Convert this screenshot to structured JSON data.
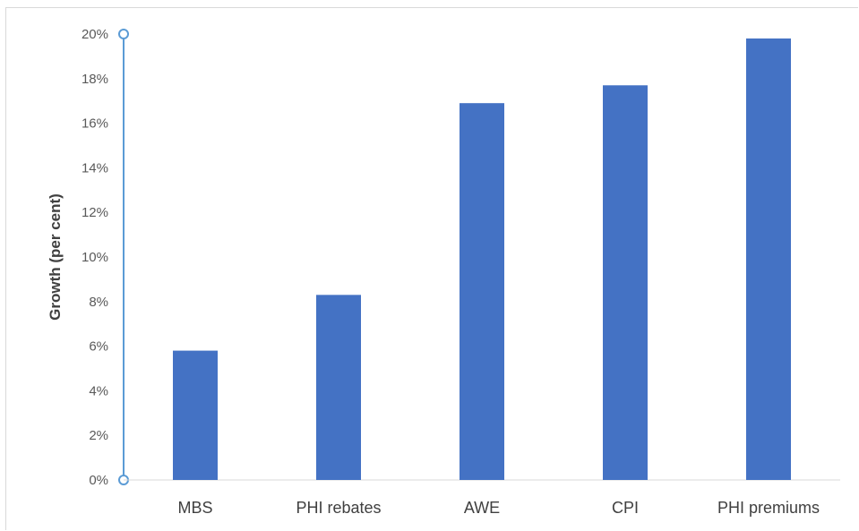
{
  "chart_data": {
    "type": "bar",
    "categories": [
      "MBS",
      "PHI rebates",
      "AWE",
      "CPI",
      "PHI premiums"
    ],
    "values": [
      5.8,
      8.3,
      16.9,
      17.7,
      19.8
    ],
    "title": "",
    "xlabel": "",
    "ylabel": "Growth (per cent)",
    "ylim": [
      0,
      20
    ],
    "ytick_step": 2,
    "ytick_labels": [
      "0%",
      "2%",
      "4%",
      "6%",
      "8%",
      "10%",
      "12%",
      "14%",
      "16%",
      "18%",
      "20%"
    ],
    "grid": false,
    "legend": "none",
    "bar_color": "#4472c4",
    "axis_color": "#5b9bd5"
  }
}
